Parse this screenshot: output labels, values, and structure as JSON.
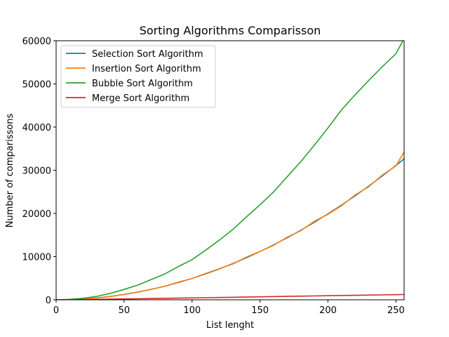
{
  "chart_data": {
    "type": "line",
    "title": "Sorting Algorithms Comparisson",
    "xlabel": "List lenght",
    "ylabel": "Number of comparissons",
    "xlim": [
      0,
      256
    ],
    "ylim": [
      0,
      60000
    ],
    "x_ticks": [
      0,
      50,
      100,
      150,
      200,
      250
    ],
    "y_ticks": [
      0,
      10000,
      20000,
      30000,
      40000,
      50000,
      60000
    ],
    "x_tick_labels": [
      "0",
      "50",
      "100",
      "150",
      "200",
      "250"
    ],
    "y_tick_labels": [
      "0",
      "10000",
      "20000",
      "30000",
      "40000",
      "50000",
      "60000"
    ],
    "grid": false,
    "legend_position": "top-left",
    "x": [
      0,
      10,
      20,
      30,
      40,
      50,
      60,
      70,
      80,
      90,
      100,
      110,
      120,
      130,
      140,
      150,
      160,
      170,
      180,
      190,
      200,
      210,
      220,
      230,
      240,
      250,
      256
    ],
    "series": [
      {
        "name": "Selection Sort Algorithm",
        "color": "#1f77b4",
        "values": [
          0,
          45,
          190,
          435,
          780,
          1225,
          1770,
          2415,
          3160,
          4005,
          4950,
          5995,
          7140,
          8385,
          9730,
          11175,
          12720,
          14365,
          16110,
          17955,
          19900,
          21945,
          24090,
          26335,
          28680,
          31125,
          32640
        ]
      },
      {
        "name": "Insertion Sort Algorithm",
        "color": "#ff7f0e",
        "values": [
          0,
          30,
          160,
          420,
          760,
          1250,
          1800,
          2450,
          3100,
          4100,
          4950,
          6100,
          7200,
          8300,
          9900,
          11200,
          12600,
          14500,
          16000,
          18200,
          19800,
          21800,
          24300,
          26200,
          28900,
          31000,
          34200
        ]
      },
      {
        "name": "Bubble Sort Algorithm",
        "color": "#2ca02c",
        "values": [
          0,
          100,
          350,
          800,
          1500,
          2400,
          3400,
          4700,
          6000,
          7700,
          9300,
          11500,
          13800,
          16300,
          19200,
          22000,
          25000,
          28500,
          32000,
          35800,
          39800,
          44000,
          47500,
          50800,
          54000,
          57000,
          60500
        ]
      },
      {
        "name": "Merge Sort Algorithm",
        "color": "#d62728",
        "values": [
          0,
          25,
          60,
          100,
          150,
          195,
          240,
          290,
          340,
          390,
          440,
          490,
          540,
          590,
          640,
          690,
          740,
          790,
          840,
          890,
          940,
          990,
          1040,
          1090,
          1140,
          1190,
          1220
        ]
      }
    ]
  }
}
